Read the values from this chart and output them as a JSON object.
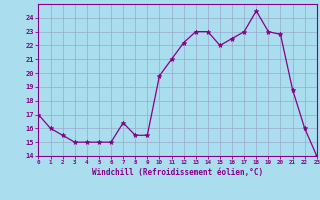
{
  "x": [
    0,
    1,
    2,
    3,
    4,
    5,
    6,
    7,
    8,
    9,
    10,
    11,
    12,
    13,
    14,
    15,
    16,
    17,
    18,
    19,
    20,
    21,
    22,
    23
  ],
  "y": [
    17.0,
    16.0,
    15.5,
    15.0,
    15.0,
    15.0,
    15.0,
    16.4,
    15.5,
    15.5,
    19.8,
    21.0,
    22.2,
    23.0,
    23.0,
    22.0,
    22.5,
    23.0,
    24.5,
    23.0,
    22.8,
    18.8,
    16.0,
    14.0
  ],
  "line_color": "#880088",
  "marker": "*",
  "marker_size": 3.5,
  "bg_color": "#aaddee",
  "grid_color": "#99aacc",
  "xlabel": "Windchill (Refroidissement éolien,°C)",
  "xlabel_color": "#880088",
  "tick_color": "#880088",
  "axis_line_color": "#880088",
  "ylim": [
    14,
    25
  ],
  "yticks": [
    14,
    15,
    16,
    17,
    18,
    19,
    20,
    21,
    22,
    23,
    24
  ],
  "xlim": [
    0,
    23
  ],
  "xticks": [
    0,
    1,
    2,
    3,
    4,
    5,
    6,
    7,
    8,
    9,
    10,
    11,
    12,
    13,
    14,
    15,
    16,
    17,
    18,
    19,
    20,
    21,
    22,
    23
  ]
}
